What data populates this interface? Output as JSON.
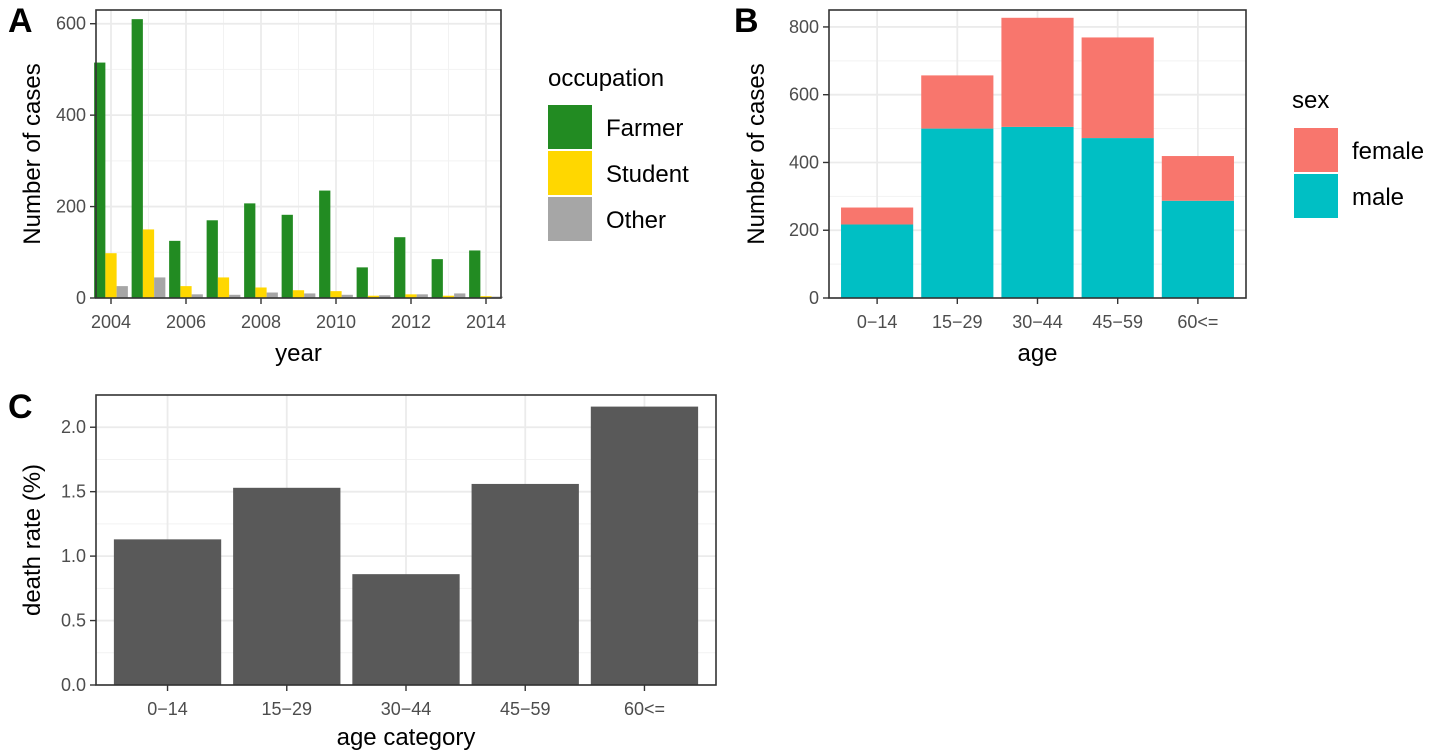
{
  "chart_data": [
    {
      "panel": "A",
      "type": "bar",
      "xlabel": "year",
      "ylabel": "Number of cases",
      "ylim": [
        0,
        630
      ],
      "y_ticks": [
        "0",
        "200",
        "400",
        "600"
      ],
      "x_ticks": [
        "2004",
        "2006",
        "2008",
        "2010",
        "2012",
        "2014"
      ],
      "x_range": [
        2003.6,
        2014.4
      ],
      "legend": {
        "title": "occupation",
        "position": "right"
      },
      "grid": true,
      "categories": [
        2004,
        2005,
        2006,
        2007,
        2008,
        2009,
        2010,
        2011,
        2012,
        2013,
        2014
      ],
      "series": [
        {
          "name": "Farmer",
          "color": "#228b22",
          "values": [
            515,
            610,
            125,
            170,
            207,
            182,
            235,
            67,
            133,
            85,
            104
          ]
        },
        {
          "name": "Student",
          "color": "#ffd700",
          "values": [
            98,
            150,
            26,
            45,
            23,
            17,
            15,
            5,
            8,
            5,
            4
          ]
        },
        {
          "name": "Other",
          "color": "#a6a6a6",
          "values": [
            26,
            45,
            8,
            7,
            12,
            10,
            7,
            6,
            8,
            10,
            3
          ]
        }
      ]
    },
    {
      "panel": "B",
      "type": "bar",
      "stacked": true,
      "xlabel": "age",
      "ylabel": "Number of cases",
      "ylim": [
        0,
        850
      ],
      "y_ticks": [
        "0",
        "200",
        "400",
        "600",
        "800"
      ],
      "categories": [
        "0−14",
        "15−29",
        "30−44",
        "45−59",
        "60<="
      ],
      "legend": {
        "title": "sex",
        "position": "right"
      },
      "grid": true,
      "series": [
        {
          "name": "male",
          "color": "#00bfc4",
          "values": [
            217,
            500,
            505,
            472,
            287
          ]
        },
        {
          "name": "female",
          "color": "#f8766d",
          "values": [
            50,
            157,
            322,
            297,
            132
          ]
        }
      ]
    },
    {
      "panel": "C",
      "type": "bar",
      "xlabel": "age category",
      "ylabel": "death rate (%)",
      "ylim": [
        0,
        2.25
      ],
      "y_ticks": [
        "0.0",
        "0.5",
        "1.0",
        "1.5",
        "2.0"
      ],
      "categories": [
        "0−14",
        "15−29",
        "30−44",
        "45−59",
        "60<="
      ],
      "grid": true,
      "color": "#595959",
      "values": [
        1.13,
        1.53,
        0.86,
        1.56,
        2.16
      ]
    }
  ]
}
